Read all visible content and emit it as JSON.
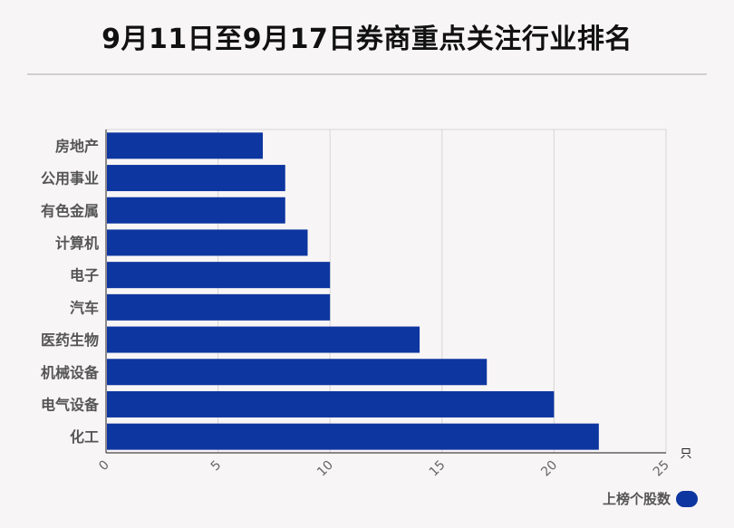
{
  "chart_data": {
    "type": "bar",
    "orientation": "horizontal",
    "title": "9月11日至9月17日券商重点关注行业排名",
    "categories": [
      "房地产",
      "公用事业",
      "有色金属",
      "计算机",
      "电子",
      "汽车",
      "医药生物",
      "机械设备",
      "电气设备",
      "化工"
    ],
    "series": [
      {
        "name": "上榜个股数",
        "values": [
          7,
          8,
          8,
          9,
          10,
          10,
          14,
          17,
          20,
          22
        ]
      }
    ],
    "xlim": [
      0,
      25
    ],
    "xticks": [
      "0",
      "5",
      "10",
      "15",
      "20",
      "25"
    ],
    "unit": "只",
    "grid": true,
    "legend_position": "bottom-right",
    "bar_color": "#0e36a0"
  }
}
